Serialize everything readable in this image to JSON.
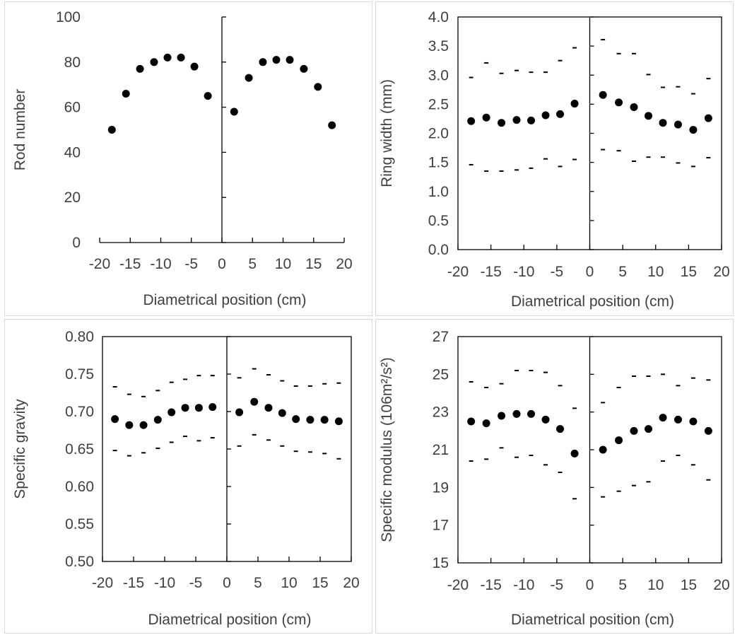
{
  "chart_data": [
    {
      "type": "scatter",
      "title": "",
      "xlabel": "Diametrical position (cm)",
      "ylabel": "Rod number",
      "xlim": [
        -20,
        20
      ],
      "ylim": [
        0,
        100
      ],
      "xticks": [
        "-20",
        "-15",
        "-10",
        "-5",
        "0",
        "5",
        "10",
        "15",
        "20"
      ],
      "yticks": [
        "0",
        "20",
        "40",
        "60",
        "80",
        "100"
      ],
      "plot_frame": false,
      "series": [
        {
          "marker": "dot",
          "color": "#000000",
          "x": [
            -18,
            -15.7,
            -13.4,
            -11.1,
            -8.9,
            -6.7,
            -4.5,
            -2.3,
            2,
            4.4,
            6.7,
            8.9,
            11.1,
            13.4,
            15.7,
            18
          ],
          "y": [
            50,
            66,
            77,
            80,
            82,
            82,
            78,
            65,
            58,
            73,
            80,
            81,
            81,
            77,
            69,
            52
          ]
        }
      ]
    },
    {
      "type": "scatter",
      "title": "",
      "xlabel": "Diametrical position (cm)",
      "ylabel": "Ring width (mm)",
      "xlim": [
        -20,
        20
      ],
      "ylim": [
        0,
        4
      ],
      "xticks": [
        "-20",
        "-15",
        "-10",
        "-5",
        "0",
        "5",
        "10",
        "15",
        "20"
      ],
      "yticks": [
        "0.0",
        "0.5",
        "1.0",
        "1.5",
        "2.0",
        "2.5",
        "3.0",
        "3.5",
        "4.0"
      ],
      "plot_frame": true,
      "series": [
        {
          "marker": "dot",
          "color": "#000000",
          "x": [
            -18,
            -15.7,
            -13.4,
            -11.1,
            -8.9,
            -6.7,
            -4.5,
            -2.3,
            2,
            4.4,
            6.7,
            8.9,
            11.1,
            13.4,
            15.7,
            18
          ],
          "y": [
            2.21,
            2.27,
            2.18,
            2.23,
            2.22,
            2.31,
            2.33,
            2.51,
            2.66,
            2.53,
            2.45,
            2.3,
            2.18,
            2.15,
            2.06,
            2.26
          ]
        },
        {
          "marker": "dash",
          "color": "#000000",
          "x": [
            -18,
            -15.7,
            -13.4,
            -11.1,
            -8.9,
            -6.7,
            -4.5,
            -2.3,
            2,
            4.4,
            6.7,
            8.9,
            11.1,
            13.4,
            15.7,
            18
          ],
          "y": [
            2.96,
            3.21,
            3.03,
            3.08,
            3.05,
            3.05,
            3.25,
            3.47,
            3.61,
            3.37,
            3.37,
            3.01,
            2.79,
            2.8,
            2.68,
            2.94
          ]
        },
        {
          "marker": "dash",
          "color": "#000000",
          "x": [
            -18,
            -15.7,
            -13.4,
            -11.1,
            -8.9,
            -6.7,
            -4.5,
            -2.3,
            2,
            4.4,
            6.7,
            8.9,
            11.1,
            13.4,
            15.7,
            18
          ],
          "y": [
            1.46,
            1.35,
            1.35,
            1.37,
            1.4,
            1.56,
            1.43,
            1.55,
            1.72,
            1.7,
            1.52,
            1.59,
            1.59,
            1.49,
            1.43,
            1.58
          ]
        }
      ]
    },
    {
      "type": "scatter",
      "title": "",
      "xlabel": "Diametrical position (cm)",
      "ylabel": "Specific gravity",
      "xlim": [
        -20,
        20
      ],
      "ylim": [
        0.5,
        0.8
      ],
      "xticks": [
        "-20",
        "-15",
        "-10",
        "-5",
        "0",
        "5",
        "10",
        "15",
        "20"
      ],
      "yticks": [
        "0.50",
        "0.55",
        "0.60",
        "0.65",
        "0.70",
        "0.75",
        "0.80"
      ],
      "plot_frame": true,
      "series": [
        {
          "marker": "dot",
          "color": "#000000",
          "x": [
            -18,
            -15.7,
            -13.4,
            -11.1,
            -8.9,
            -6.7,
            -4.5,
            -2.3,
            2,
            4.4,
            6.7,
            8.9,
            11.1,
            13.4,
            15.7,
            18
          ],
          "y": [
            0.69,
            0.682,
            0.682,
            0.689,
            0.699,
            0.705,
            0.705,
            0.706,
            0.699,
            0.713,
            0.705,
            0.698,
            0.69,
            0.689,
            0.689,
            0.687
          ]
        },
        {
          "marker": "dash",
          "color": "#000000",
          "x": [
            -18,
            -15.7,
            -13.4,
            -11.1,
            -8.9,
            -6.7,
            -4.5,
            -2.3,
            2,
            4.4,
            6.7,
            8.9,
            11.1,
            13.4,
            15.7,
            18
          ],
          "y": [
            0.733,
            0.723,
            0.72,
            0.728,
            0.739,
            0.743,
            0.748,
            0.748,
            0.745,
            0.757,
            0.749,
            0.741,
            0.734,
            0.734,
            0.737,
            0.738
          ]
        },
        {
          "marker": "dash",
          "color": "#000000",
          "x": [
            -18,
            -15.7,
            -13.4,
            -11.1,
            -8.9,
            -6.7,
            -4.5,
            -2.3,
            2,
            4.4,
            6.7,
            8.9,
            11.1,
            13.4,
            15.7,
            18
          ],
          "y": [
            0.648,
            0.641,
            0.645,
            0.651,
            0.659,
            0.667,
            0.661,
            0.665,
            0.654,
            0.669,
            0.662,
            0.654,
            0.647,
            0.646,
            0.644,
            0.637
          ]
        }
      ]
    },
    {
      "type": "scatter",
      "title": "",
      "xlabel": "Diametrical position (cm)",
      "ylabel": "Specific modulus (106m²/s²)",
      "xlim": [
        -20,
        20
      ],
      "ylim": [
        15,
        27
      ],
      "xticks": [
        "-20",
        "-15",
        "-10",
        "-5",
        "0",
        "5",
        "10",
        "15",
        "20"
      ],
      "yticks": [
        "15",
        "17",
        "19",
        "21",
        "23",
        "25",
        "27"
      ],
      "plot_frame": true,
      "series": [
        {
          "marker": "dot",
          "color": "#000000",
          "x": [
            -18,
            -15.7,
            -13.4,
            -11.1,
            -8.9,
            -6.7,
            -4.5,
            -2.3,
            2,
            4.4,
            6.7,
            8.9,
            11.1,
            13.4,
            15.7,
            18
          ],
          "y": [
            22.5,
            22.4,
            22.8,
            22.9,
            22.9,
            22.6,
            22.1,
            20.8,
            21.0,
            21.5,
            22.0,
            22.1,
            22.7,
            22.6,
            22.5,
            22.0
          ]
        },
        {
          "marker": "dash",
          "color": "#000000",
          "x": [
            -18,
            -15.7,
            -13.4,
            -11.1,
            -8.9,
            -6.7,
            -4.5,
            -2.3,
            2,
            4.4,
            6.7,
            8.9,
            11.1,
            13.4,
            15.7,
            18
          ],
          "y": [
            24.6,
            24.3,
            24.5,
            25.2,
            25.2,
            25.1,
            24.4,
            23.2,
            23.5,
            24.3,
            24.9,
            24.9,
            25.0,
            24.4,
            24.8,
            24.7
          ]
        },
        {
          "marker": "dash",
          "color": "#000000",
          "x": [
            -18,
            -15.7,
            -13.4,
            -11.1,
            -8.9,
            -6.7,
            -4.5,
            -2.3,
            2,
            4.4,
            6.7,
            8.9,
            11.1,
            13.4,
            15.7,
            18
          ],
          "y": [
            20.4,
            20.5,
            21.1,
            20.6,
            20.7,
            20.2,
            19.8,
            18.4,
            18.5,
            18.8,
            19.1,
            19.3,
            20.4,
            20.7,
            20.2,
            19.4
          ]
        }
      ]
    }
  ]
}
